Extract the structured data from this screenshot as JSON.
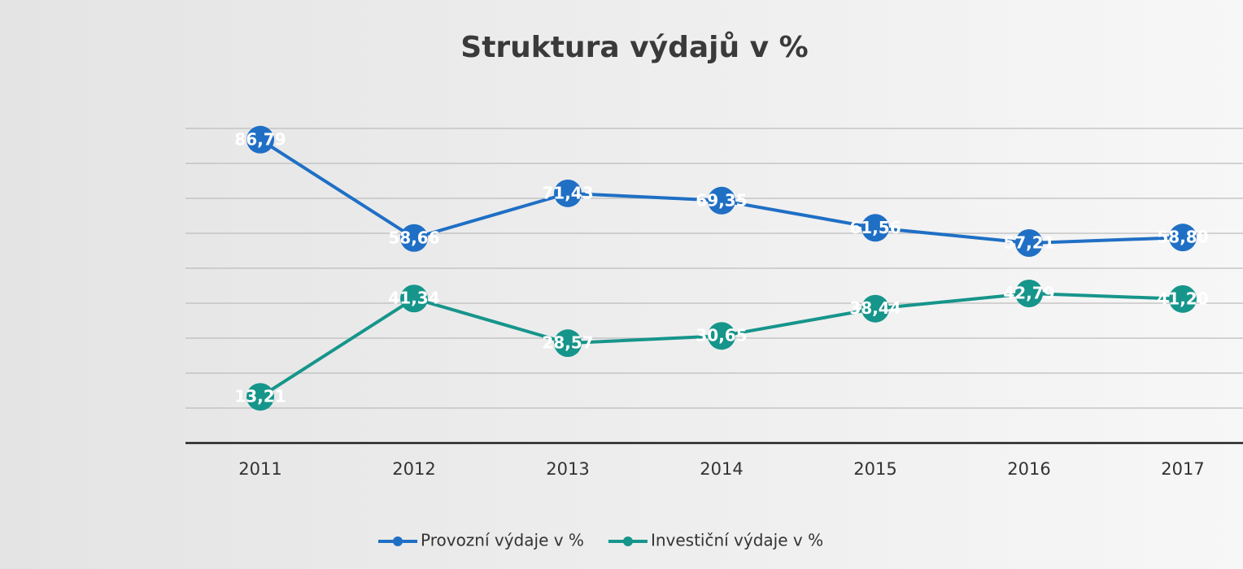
{
  "chart_data": {
    "type": "line",
    "title": "Struktura výdajů v %",
    "categories": [
      "2011",
      "2012",
      "2013",
      "2014",
      "2015",
      "2016",
      "2017"
    ],
    "series": [
      {
        "name": "Provozní výdaje v %",
        "color": "#1f6fc5",
        "values": [
          86.79,
          58.66,
          71.43,
          69.35,
          61.56,
          57.21,
          58.8
        ],
        "value_labels": [
          "86,79",
          "58,66",
          "71,43",
          "69,35",
          "61,56",
          "57,21",
          "58,80"
        ]
      },
      {
        "name": "Investiční výdaje v %",
        "color": "#16958b",
        "values": [
          13.21,
          41.34,
          28.57,
          30.65,
          38.44,
          42.79,
          41.2
        ],
        "value_labels": [
          "13,21",
          "41,34",
          "28,57",
          "30,65",
          "38,44",
          "42,79",
          "41,20"
        ]
      }
    ],
    "ylim": [
      0,
      90
    ],
    "yticks": [
      0,
      10,
      20,
      30,
      40,
      50,
      60,
      70,
      80,
      90
    ],
    "grid": true
  }
}
